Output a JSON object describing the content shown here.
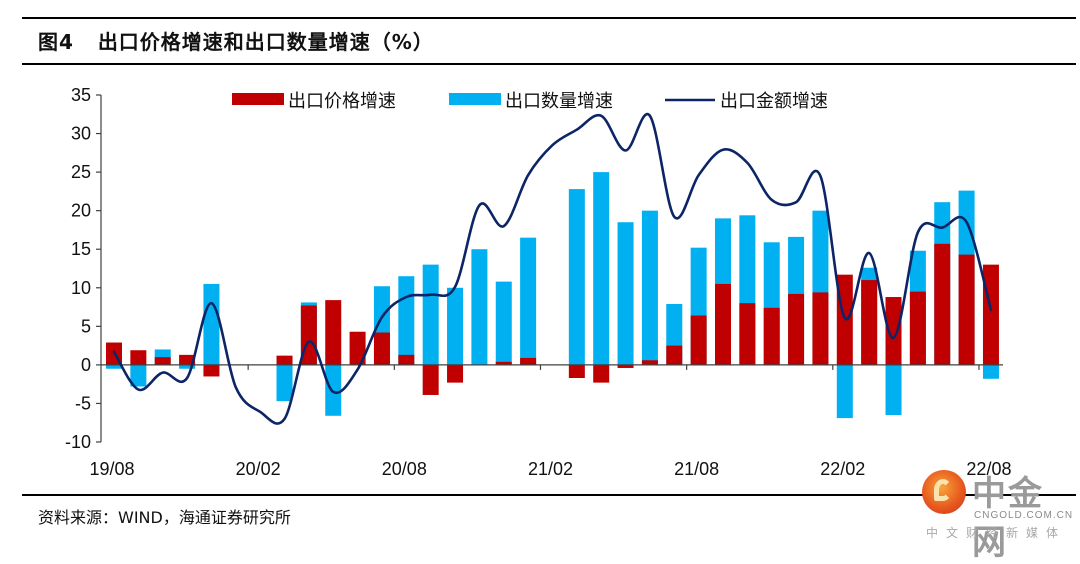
{
  "header": {
    "figure_label": "图4",
    "title": "出口价格增速和出口数量增速（%）"
  },
  "footer": {
    "source": "资料来源：WIND，海通证券研究所"
  },
  "watermark": {
    "name": "中金网",
    "domain": "CNGOLD.COM.CN",
    "tagline": "中文财经新媒体"
  },
  "colors": {
    "price": "#C00000",
    "quantity": "#00B0F0",
    "value": "#0D2567",
    "axis": "#404040"
  },
  "chart_data": {
    "type": "bar",
    "title": "出口价格增速和出口数量增速（%）",
    "xlabel": "",
    "ylabel": "",
    "ylim": [
      -10,
      35
    ],
    "yticks": [
      35,
      30,
      25,
      20,
      15,
      10,
      5,
      0,
      -5,
      -10
    ],
    "grid": false,
    "legend_position": "top",
    "x": [
      "19/08",
      "19/09",
      "19/10",
      "19/11",
      "19/12",
      "20/01",
      "20/02",
      "20/03",
      "20/04",
      "20/05",
      "20/06",
      "20/07",
      "20/08",
      "20/09",
      "20/10",
      "20/11",
      "20/12",
      "21/01",
      "21/02",
      "21/03",
      "21/04",
      "21/05",
      "21/06",
      "21/07",
      "21/08",
      "21/09",
      "21/10",
      "21/11",
      "21/12",
      "22/01",
      "22/02",
      "22/03",
      "22/04",
      "22/05",
      "22/06",
      "22/07",
      "22/08"
    ],
    "xtick_labels": [
      "19/08",
      "20/02",
      "20/08",
      "21/02",
      "21/08",
      "22/02",
      "22/08"
    ],
    "series": [
      {
        "name": "出口价格增速",
        "type": "bar",
        "color": "#C00000",
        "values": [
          2.9,
          1.9,
          1.0,
          1.3,
          -1.5,
          null,
          null,
          1.2,
          7.7,
          8.4,
          4.3,
          4.2,
          1.3,
          -3.9,
          -2.3,
          0.0,
          0.4,
          0.9,
          null,
          -1.7,
          -2.3,
          -0.4,
          0.6,
          2.5,
          6.4,
          10.5,
          8.0,
          7.4,
          9.2,
          9.4,
          11.7,
          11.0,
          8.8,
          9.5,
          15.7,
          14.3,
          13.0
        ]
      },
      {
        "name": "出口数量增速",
        "type": "bar",
        "color": "#00B0F0",
        "values": [
          -0.5,
          -2.8,
          2.0,
          -0.5,
          10.5,
          null,
          null,
          -4.7,
          8.1,
          -6.6,
          0.0,
          10.2,
          11.5,
          13.0,
          10.0,
          15.0,
          10.8,
          16.5,
          null,
          22.8,
          25.0,
          18.5,
          20.0,
          7.9,
          15.2,
          19.0,
          19.4,
          15.9,
          16.6,
          20.0,
          -6.9,
          12.6,
          -6.5,
          14.8,
          21.1,
          22.6,
          -1.8
        ]
      },
      {
        "name": "出口金额增速",
        "type": "line",
        "color": "#0D2567",
        "values": [
          1.7,
          -3.2,
          -1.0,
          -1.7,
          8.0,
          -2.9,
          -6.1,
          -7.0,
          3.0,
          -3.5,
          -0.6,
          6.2,
          8.8,
          9.1,
          10.1,
          20.7,
          18.0,
          24.6,
          28.5,
          30.5,
          32.3,
          27.8,
          32.3,
          19.2,
          24.6,
          27.9,
          26.2,
          21.4,
          21.1,
          24.5,
          6.1,
          14.5,
          3.5,
          17.2,
          17.8,
          18.5,
          7.1
        ]
      }
    ]
  }
}
